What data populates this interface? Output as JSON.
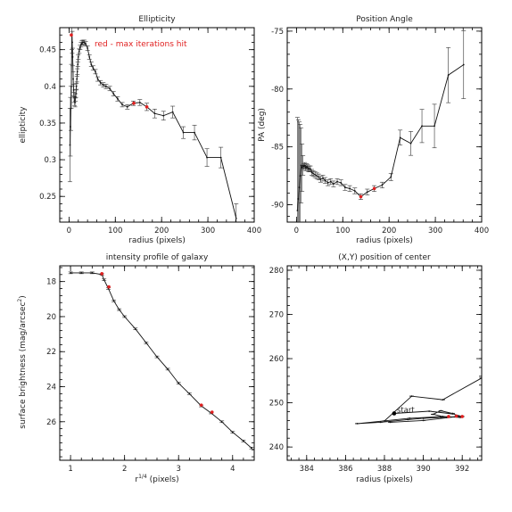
{
  "chart_data": [
    {
      "type": "line",
      "title": "Ellipticity",
      "xlabel": "radius (pixels)",
      "ylabel": "ellipticity",
      "xlim": [
        -20,
        400
      ],
      "ylim": [
        0.215,
        0.48
      ],
      "xticks": [
        0,
        100,
        200,
        300,
        400
      ],
      "yticks": [
        0.25,
        0.3,
        0.35,
        0.4,
        0.45
      ],
      "annotation": "red - max iterations hit",
      "series": [
        {
          "x": [
            2,
            3,
            4,
            5,
            6,
            7,
            8,
            9,
            10,
            11,
            12,
            13,
            14,
            15,
            16,
            17,
            18,
            19,
            20,
            22,
            24,
            26,
            28,
            30,
            33,
            36,
            40,
            44,
            48,
            52,
            57,
            62,
            68,
            74,
            80,
            88,
            96,
            105,
            115,
            126,
            139,
            153,
            168,
            185,
            204,
            224,
            247,
            271,
            298,
            328,
            361
          ],
          "y": [
            0.32,
            0.345,
            0.37,
            0.4,
            0.47,
            0.46,
            0.44,
            0.41,
            0.395,
            0.385,
            0.38,
            0.378,
            0.385,
            0.39,
            0.4,
            0.41,
            0.42,
            0.43,
            0.44,
            0.448,
            0.453,
            0.457,
            0.459,
            0.46,
            0.46,
            0.458,
            0.452,
            0.44,
            0.43,
            0.425,
            0.42,
            0.41,
            0.405,
            0.402,
            0.4,
            0.397,
            0.39,
            0.383,
            0.375,
            0.372,
            0.377,
            0.378,
            0.372,
            0.363,
            0.36,
            0.365,
            0.337,
            0.337,
            0.303,
            0.303,
            0.22
          ],
          "err": [
            0.05,
            0.04,
            0.03,
            0.03,
            0.02,
            0.015,
            0.012,
            0.01,
            0.008,
            0.007,
            0.006,
            0.006,
            0.005,
            0.005,
            0.004,
            0.004,
            0.004,
            0.003,
            0.003,
            0.003,
            0.003,
            0.003,
            0.003,
            0.003,
            0.003,
            0.003,
            0.003,
            0.003,
            0.003,
            0.003,
            0.003,
            0.003,
            0.003,
            0.003,
            0.003,
            0.003,
            0.003,
            0.003,
            0.003,
            0.003,
            0.003,
            0.004,
            0.005,
            0.006,
            0.006,
            0.008,
            0.008,
            0.01,
            0.012,
            0.014,
            0.02
          ]
        }
      ],
      "red_points": [
        {
          "x": 5,
          "y": 0.47
        },
        {
          "x": 140,
          "y": 0.377
        },
        {
          "x": 168,
          "y": 0.372
        }
      ]
    },
    {
      "type": "line",
      "title": "Position Angle",
      "xlabel": "radius (pixels)",
      "ylabel": "PA (deg)",
      "xlim": [
        -20,
        400
      ],
      "ylim": [
        -91.5,
        -74.7
      ],
      "xticks": [
        0,
        100,
        200,
        300,
        400
      ],
      "yticks": [
        -90,
        -85,
        -80,
        -75
      ],
      "series": [
        {
          "x": [
            2,
            4,
            6,
            8,
            10,
            12,
            14,
            16,
            18,
            20,
            22,
            24,
            26,
            28,
            30,
            33,
            36,
            40,
            44,
            48,
            52,
            57,
            62,
            68,
            74,
            80,
            88,
            96,
            105,
            115,
            126,
            139,
            153,
            168,
            185,
            204,
            224,
            247,
            271,
            298,
            328,
            361
          ],
          "y": [
            -90.5,
            -89.5,
            -88.5,
            -87.5,
            -86.6,
            -86.8,
            -86.6,
            -86.7,
            -86.6,
            -86.8,
            -86.7,
            -86.8,
            -86.9,
            -86.9,
            -86.9,
            -87.2,
            -87.3,
            -87.4,
            -87.5,
            -87.6,
            -87.8,
            -87.7,
            -87.9,
            -88.1,
            -88.0,
            -88.2,
            -88.0,
            -88.1,
            -88.5,
            -88.6,
            -88.8,
            -89.3,
            -88.9,
            -88.6,
            -88.3,
            -87.6,
            -84.2,
            -84.7,
            -83.2,
            -83.2,
            -78.8,
            -77.9
          ]
        }
      ],
      "red_points": [
        {
          "x": 139,
          "y": -89.3
        },
        {
          "x": 168,
          "y": -88.6
        }
      ]
    },
    {
      "type": "line",
      "title": "intensity profile of galaxy",
      "xlabel": "r1/4 (pixels)",
      "ylabel": "surface brightness (mag/arcsec2)",
      "xlim": [
        0.8,
        4.4
      ],
      "ylim": [
        28.2,
        17.1
      ],
      "xticks": [
        1,
        2,
        3,
        4
      ],
      "yticks": [
        18,
        20,
        22,
        24,
        26
      ],
      "series": [
        {
          "x": [
            1.0,
            1.2,
            1.4,
            1.58,
            1.62,
            1.7,
            1.8,
            1.9,
            2.0,
            2.2,
            2.4,
            2.6,
            2.8,
            3.0,
            3.2,
            3.42,
            3.6,
            3.8,
            4.0,
            4.2,
            4.35
          ],
          "y": [
            17.5,
            17.5,
            17.5,
            17.6,
            17.9,
            18.4,
            19.1,
            19.6,
            20.0,
            20.7,
            21.5,
            22.3,
            23.0,
            23.8,
            24.4,
            25.1,
            25.5,
            26.0,
            26.6,
            27.1,
            27.5
          ]
        }
      ],
      "red_points": [
        {
          "x": 1.58,
          "y": 17.55
        },
        {
          "x": 1.71,
          "y": 18.3
        },
        {
          "x": 3.42,
          "y": 25.05
        },
        {
          "x": 3.62,
          "y": 25.45
        }
      ]
    },
    {
      "type": "line",
      "title": "(X,Y) position of center",
      "xlabel": "radius (pixels)",
      "ylabel": "",
      "xlim": [
        383.0,
        393.0
      ],
      "ylim": [
        237.0,
        281.0
      ],
      "xticks": [
        384,
        386,
        388,
        390,
        392
      ],
      "yticks": [
        240,
        250,
        260,
        270,
        280
      ],
      "start_label": "start",
      "start_point": {
        "x": 388.5,
        "y": 247.6
      },
      "series": [
        {
          "x": [
            388.5,
            390.3,
            391.5,
            392.0,
            391.2,
            390.5,
            390.9,
            391.5,
            391.9,
            391.0,
            389.3,
            386.6,
            387.8,
            389.2,
            390.0,
            390.9,
            391.8,
            390.0,
            388.3,
            388.0,
            389.4,
            391.0,
            393.0
          ],
          "y": [
            247.6,
            248.1,
            247.5,
            246.9,
            246.7,
            247.4,
            248.2,
            247.6,
            246.7,
            246.9,
            246.5,
            245.3,
            245.6,
            246.2,
            246.5,
            246.7,
            246.9,
            246.0,
            245.6,
            245.9,
            251.5,
            250.7,
            255.6
          ]
        }
      ],
      "red_points": [
        {
          "x": 391.3,
          "y": 246.9
        },
        {
          "x": 391.7,
          "y": 247.0
        },
        {
          "x": 392.0,
          "y": 246.9
        }
      ]
    }
  ]
}
